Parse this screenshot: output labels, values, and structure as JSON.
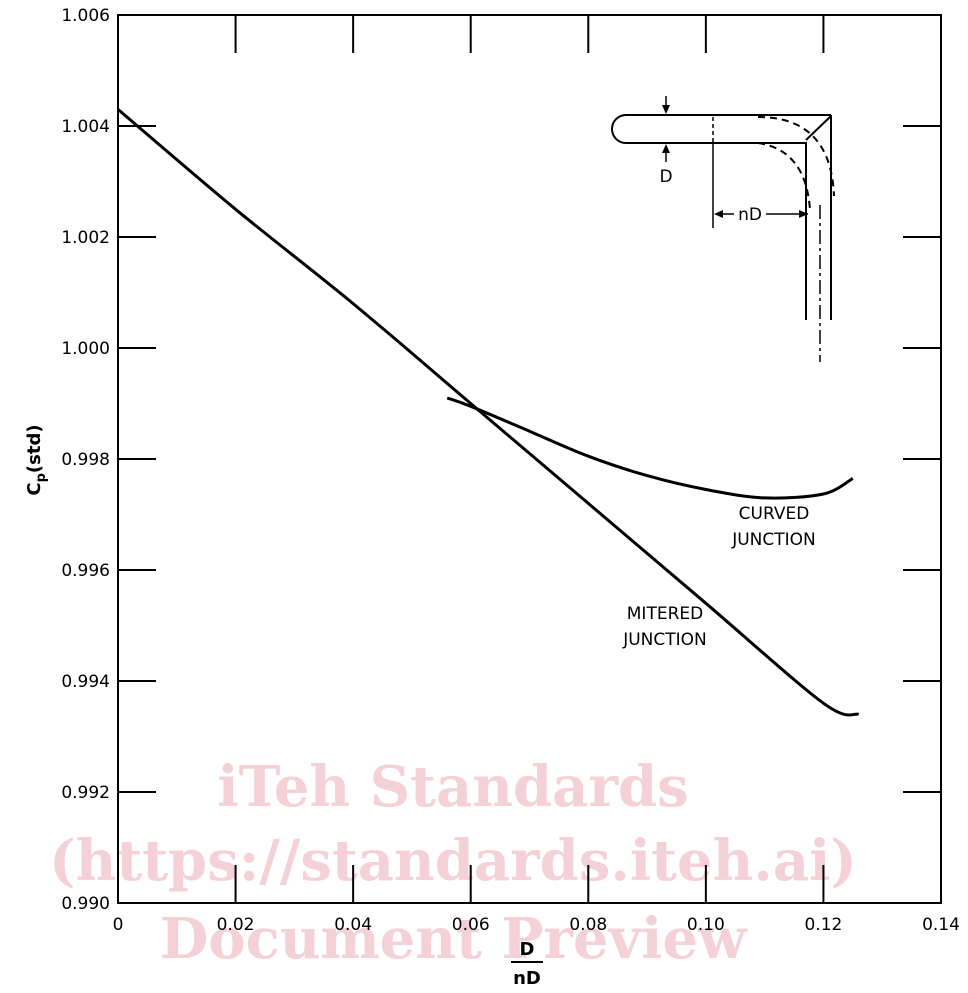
{
  "chart_data": {
    "type": "line",
    "title": "",
    "xlabel": {
      "numerator": "D",
      "denominator": "nD"
    },
    "ylabel": {
      "main": "C",
      "sub": "p",
      "suffix": "(std)"
    },
    "xlim": [
      0,
      0.14
    ],
    "ylim": [
      0.99,
      1.006
    ],
    "x_ticks": [
      0,
      0.02,
      0.04,
      0.06,
      0.08,
      0.1,
      0.12,
      0.14
    ],
    "x_tick_labels": [
      "0",
      "0.02",
      "0.04",
      "0.06",
      "0.08",
      "0.10",
      "0.12",
      "0.14"
    ],
    "y_ticks": [
      0.99,
      0.992,
      0.994,
      0.996,
      0.998,
      1.0,
      1.002,
      1.004,
      1.006
    ],
    "y_tick_labels": [
      "0.990",
      "0.992",
      "0.994",
      "0.996",
      "0.998",
      "1.000",
      "1.002",
      "1.004",
      "1.006"
    ],
    "grid": false,
    "series": [
      {
        "name": "MITERED JUNCTION",
        "x": [
          0,
          0.02,
          0.04,
          0.06,
          0.08,
          0.1,
          0.12,
          0.126
        ],
        "y": [
          1.0043,
          1.0025,
          1.0008,
          0.999,
          0.9972,
          0.9954,
          0.9936,
          0.9934
        ]
      },
      {
        "name": "CURVED JUNCTION",
        "x": [
          0.056,
          0.06,
          0.07,
          0.08,
          0.09,
          0.1,
          0.11,
          0.12,
          0.125
        ],
        "y": [
          0.9991,
          0.99895,
          0.9985,
          0.99805,
          0.9977,
          0.99745,
          0.9973,
          0.99737,
          0.99765
        ]
      }
    ],
    "annotations": {
      "curved_line1": "CURVED",
      "curved_line2": "JUNCTION",
      "mitered_line1": "MITERED",
      "mitered_line2": "JUNCTION",
      "inset_d_label": "D",
      "inset_nd_label": "nD"
    }
  },
  "watermark": {
    "line1": "iTeh Standards",
    "line2": "(https://standards.iteh.ai)",
    "line3": "Document Preview"
  }
}
